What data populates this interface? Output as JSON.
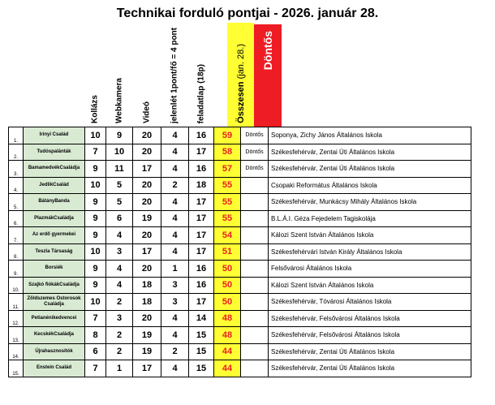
{
  "title": "Technikai forduló pontjai  - 2026. január 28.",
  "headers": {
    "kollazs": "Kollázs",
    "webkamera": "Webkamera",
    "video": "Videó",
    "jelenlet": "jelenlét 1pont/fő = 4 pont",
    "feladatlap": "feladatlap (18p)",
    "osszesen": "Összesen",
    "osszesen_date": " (jan. 28.)",
    "dontos": "Döntős"
  },
  "colors": {
    "total_bg": "#ffff33",
    "total_text": "#ee1c24",
    "dontos_header": "#ee1c24",
    "team_bg": "#d9ead3"
  },
  "rows": [
    {
      "rank": "1.",
      "team": "Irinyi Család",
      "kollazs": "10",
      "webkamera": "9",
      "video": "20",
      "jelenlet": "4",
      "feladatlap": "16",
      "total": "59",
      "dontos": "Döntős",
      "school": "Soponya, Zichy János Általános Iskola"
    },
    {
      "rank": "2.",
      "team": "Tudóspalánták",
      "kollazs": "7",
      "webkamera": "10",
      "video": "20",
      "jelenlet": "4",
      "feladatlap": "17",
      "total": "58",
      "dontos": "Döntős",
      "school": "Székesfehérvár, Zentai Úti Általános Iskola"
    },
    {
      "rank": "3.",
      "team": "BamamedvékCsaládja",
      "kollazs": "9",
      "webkamera": "11",
      "video": "17",
      "jelenlet": "4",
      "feladatlap": "16",
      "total": "57",
      "dontos": "Döntős",
      "school": "Székesfehérvár, Zentai Úti Általános Iskola"
    },
    {
      "rank": "4.",
      "team": "JedlikCsalád",
      "kollazs": "10",
      "webkamera": "5",
      "video": "20",
      "jelenlet": "2",
      "feladatlap": "18",
      "total": "55",
      "dontos": "",
      "school": "Csopaki Református Általános Iskola"
    },
    {
      "rank": "5.",
      "team": "BátányBanda",
      "kollazs": "9",
      "webkamera": "5",
      "video": "20",
      "jelenlet": "4",
      "feladatlap": "17",
      "total": "55",
      "dontos": "",
      "school": "Székesfehérvár, Munkácsy Mihály Általános Iskola"
    },
    {
      "rank": "6.",
      "team": "PlazmákCsaládja",
      "kollazs": "9",
      "webkamera": "6",
      "video": "19",
      "jelenlet": "4",
      "feladatlap": "17",
      "total": "55",
      "dontos": "",
      "school": "B.L.Á.I. Géza Fejedelem Tagiskolája"
    },
    {
      "rank": "7.",
      "team": "Az erdő gyermekei",
      "kollazs": "9",
      "webkamera": "4",
      "video": "20",
      "jelenlet": "4",
      "feladatlap": "17",
      "total": "54",
      "dontos": "",
      "school": "Kálozi Szent István Általános Iskola"
    },
    {
      "rank": "8.",
      "team": "Teszla Társaság",
      "kollazs": "10",
      "webkamera": "3",
      "video": "17",
      "jelenlet": "4",
      "feladatlap": "17",
      "total": "51",
      "dontos": "",
      "school": "Székesfehérvári István Király Általános Iskola"
    },
    {
      "rank": "9.",
      "team": "Borsiék",
      "kollazs": "9",
      "webkamera": "4",
      "video": "20",
      "jelenlet": "1",
      "feladatlap": "16",
      "total": "50",
      "dontos": "",
      "school": "Felsővárosi Általános Iskola"
    },
    {
      "rank": "10.",
      "team": "Szajkó fiókákCsaládja",
      "kollazs": "9",
      "webkamera": "4",
      "video": "18",
      "jelenlet": "3",
      "feladatlap": "16",
      "total": "50",
      "dontos": "",
      "school": "Kálozi Szent István Általános Iskola"
    },
    {
      "rank": "11.",
      "team": "Zöldszemes Ostorosok Családja",
      "kollazs": "10",
      "webkamera": "2",
      "video": "18",
      "jelenlet": "3",
      "feladatlap": "17",
      "total": "50",
      "dontos": "",
      "school": "Székesfehérvár, Tóvárosi Általános Iskola"
    },
    {
      "rank": "12.",
      "team": "Petianénikedvencei",
      "kollazs": "7",
      "webkamera": "3",
      "video": "20",
      "jelenlet": "4",
      "feladatlap": "14",
      "total": "48",
      "dontos": "",
      "school": "Székesfehérvár, Felsővárosi Általános Iskola"
    },
    {
      "rank": "13.",
      "team": "KecskékCsaládja",
      "kollazs": "8",
      "webkamera": "2",
      "video": "19",
      "jelenlet": "4",
      "feladatlap": "15",
      "total": "48",
      "dontos": "",
      "school": "Székesfehérvár, Felsővárosi Általános Iskola"
    },
    {
      "rank": "14.",
      "team": "Újrahasznosítók",
      "kollazs": "6",
      "webkamera": "2",
      "video": "19",
      "jelenlet": "2",
      "feladatlap": "15",
      "total": "44",
      "dontos": "",
      "school": "Székesfehérvár, Zentai Úti Általános Iskola"
    },
    {
      "rank": "15.",
      "team": "Enstein Család",
      "kollazs": "7",
      "webkamera": "1",
      "video": "17",
      "jelenlet": "4",
      "feladatlap": "15",
      "total": "44",
      "dontos": "",
      "school": "Székesfehérvár, Zentai Úti Általános Iskola"
    }
  ]
}
